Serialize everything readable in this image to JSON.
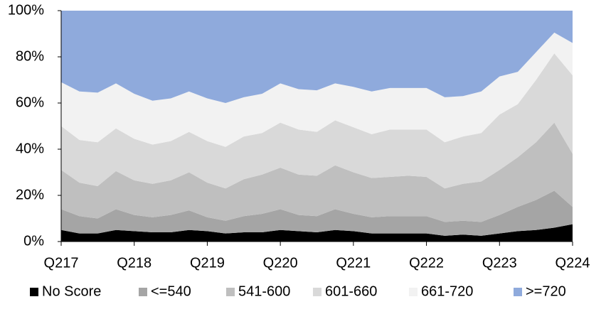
{
  "chart_data": {
    "type": "stacked_area",
    "categories": [
      "Q217",
      null,
      null,
      null,
      "Q218",
      null,
      null,
      null,
      "Q219",
      null,
      null,
      null,
      "Q220",
      null,
      null,
      null,
      "Q221",
      null,
      null,
      null,
      "Q222",
      null,
      null,
      null,
      "Q223",
      null,
      null,
      null,
      "Q224"
    ],
    "ylim": [
      0,
      100
    ],
    "yticks": [
      {
        "value": 0,
        "label": "0%"
      },
      {
        "value": 20,
        "label": "20%"
      },
      {
        "value": 40,
        "label": "40%"
      },
      {
        "value": 60,
        "label": "60%"
      },
      {
        "value": 80,
        "label": "80%"
      },
      {
        "value": 100,
        "label": "100%"
      }
    ],
    "legend": "bottom",
    "series": [
      {
        "name": "No Score",
        "color": "#000000",
        "values": [
          5,
          3.5,
          3.5,
          5,
          4.5,
          4,
          4,
          5,
          4.5,
          3.5,
          4,
          4,
          5,
          4.5,
          4,
          5,
          4.5,
          3.5,
          3.5,
          3.5,
          3.5,
          2.5,
          3,
          2.5,
          3.5,
          4.5,
          5,
          6,
          7.5
        ]
      },
      {
        "name": "<=540",
        "color": "#a5a5a5",
        "values": [
          9,
          7.5,
          6.5,
          9,
          7,
          6.5,
          7.5,
          8.5,
          6,
          5.5,
          7,
          8,
          9,
          7,
          7,
          9,
          7.5,
          7,
          7.5,
          7.5,
          7.5,
          6,
          6,
          6,
          8,
          10.5,
          13,
          16,
          7.5
        ]
      },
      {
        "name": "541-600",
        "color": "#bfbfbf",
        "values": [
          17,
          14.5,
          14,
          16.5,
          15,
          14.5,
          15,
          16.5,
          15,
          14,
          16,
          17,
          18,
          17.5,
          17.5,
          19,
          18,
          17,
          17,
          17.5,
          17,
          14.5,
          16,
          17.5,
          19.5,
          21.5,
          25,
          29.5,
          23
        ]
      },
      {
        "name": "601-660",
        "color": "#d9d9d9",
        "values": [
          19,
          18.5,
          19,
          18.5,
          18,
          17,
          17,
          17.5,
          18,
          18,
          18.5,
          18,
          19.5,
          19.5,
          19,
          19.5,
          19.5,
          19,
          20.5,
          20,
          20.5,
          20,
          20.5,
          21,
          24,
          23,
          27,
          30,
          34
        ]
      },
      {
        "name": "661-720",
        "color": "#f2f2f2",
        "values": [
          19,
          21,
          21.5,
          19.5,
          19.5,
          19,
          18.5,
          17.5,
          18.5,
          19,
          17,
          17,
          17,
          17.5,
          18,
          16,
          17.5,
          18.5,
          18,
          18,
          18,
          19.5,
          17.5,
          18,
          16.5,
          14,
          12,
          9,
          14
        ]
      },
      {
        "name": ">=720",
        "color": "#8faadc",
        "values": [
          31,
          35,
          35.5,
          31.5,
          36,
          39,
          38,
          35,
          38,
          40,
          37.5,
          36,
          31.5,
          34,
          34.5,
          31.5,
          33,
          35,
          33.5,
          33.5,
          33.5,
          37.5,
          37,
          35,
          28.5,
          26.5,
          18,
          9.5,
          14
        ]
      }
    ]
  }
}
